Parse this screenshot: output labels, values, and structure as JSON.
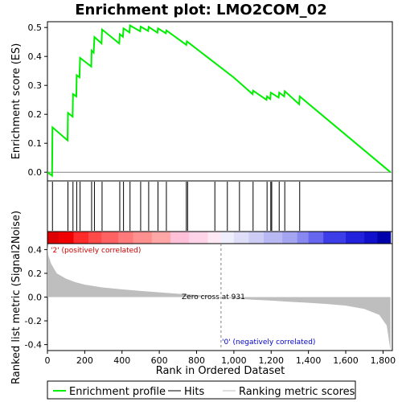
{
  "chart_data": {
    "type": "line",
    "title": "Enrichment plot: LMO2COM_02",
    "xlabel": "Rank in Ordered Dataset",
    "ylabel_top": "Enrichment score (ES)",
    "ylabel_bottom": "Ranked list metric (Signal2Noise)",
    "xlim": [
      0,
      1850
    ],
    "es_ylim": [
      -0.03,
      0.52
    ],
    "metric_ylim": [
      -0.45,
      0.45
    ],
    "x_ticks": [
      0,
      200,
      400,
      600,
      800,
      1000,
      1200,
      1400,
      1600,
      1800
    ],
    "x_tick_labels": [
      "0",
      "200",
      "400",
      "600",
      "800",
      "1,000",
      "1,200",
      "1,400",
      "1,600",
      "1,800"
    ],
    "es_ticks": [
      0.0,
      0.1,
      0.2,
      0.3,
      0.4,
      0.5
    ],
    "es_tick_labels": [
      "0.0",
      "0.1",
      "0.2",
      "0.3",
      "0.4",
      "0.5"
    ],
    "metric_ticks": [
      -0.4,
      -0.2,
      0.0,
      0.2,
      0.4
    ],
    "metric_tick_labels": [
      "-0.4",
      "-0.2",
      "0.0",
      "0.2",
      "0.4"
    ],
    "es_curve": [
      [
        0,
        0.0
      ],
      [
        25,
        -0.012
      ],
      [
        27,
        0.155
      ],
      [
        108,
        0.11
      ],
      [
        110,
        0.205
      ],
      [
        135,
        0.192
      ],
      [
        137,
        0.27
      ],
      [
        155,
        0.262
      ],
      [
        157,
        0.335
      ],
      [
        172,
        0.328
      ],
      [
        175,
        0.395
      ],
      [
        235,
        0.365
      ],
      [
        237,
        0.42
      ],
      [
        248,
        0.413
      ],
      [
        252,
        0.467
      ],
      [
        290,
        0.445
      ],
      [
        293,
        0.493
      ],
      [
        385,
        0.445
      ],
      [
        388,
        0.477
      ],
      [
        405,
        0.468
      ],
      [
        408,
        0.497
      ],
      [
        440,
        0.483
      ],
      [
        443,
        0.507
      ],
      [
        497,
        0.487
      ],
      [
        500,
        0.503
      ],
      [
        540,
        0.488
      ],
      [
        543,
        0.502
      ],
      [
        590,
        0.482
      ],
      [
        593,
        0.497
      ],
      [
        635,
        0.48
      ],
      [
        638,
        0.49
      ],
      [
        745,
        0.44
      ],
      [
        748,
        0.452
      ],
      [
        1000,
        0.327
      ],
      [
        1030,
        0.31
      ],
      [
        1100,
        0.27
      ],
      [
        1103,
        0.282
      ],
      [
        1175,
        0.25
      ],
      [
        1178,
        0.262
      ],
      [
        1195,
        0.253
      ],
      [
        1198,
        0.275
      ],
      [
        1240,
        0.258
      ],
      [
        1243,
        0.275
      ],
      [
        1270,
        0.262
      ],
      [
        1273,
        0.28
      ],
      [
        1350,
        0.235
      ],
      [
        1353,
        0.262
      ],
      [
        1840,
        0.0
      ]
    ],
    "hits": [
      27,
      110,
      137,
      157,
      175,
      237,
      252,
      293,
      388,
      408,
      443,
      500,
      543,
      593,
      638,
      745,
      752,
      898,
      965,
      1030,
      1103,
      1178,
      1198,
      1203,
      1243,
      1273,
      1353
    ],
    "metric_curve": [
      [
        0,
        0.44
      ],
      [
        5,
        0.35
      ],
      [
        20,
        0.28
      ],
      [
        50,
        0.2
      ],
      [
        100,
        0.155
      ],
      [
        150,
        0.125
      ],
      [
        200,
        0.105
      ],
      [
        300,
        0.08
      ],
      [
        400,
        0.065
      ],
      [
        500,
        0.052
      ],
      [
        600,
        0.04
      ],
      [
        700,
        0.028
      ],
      [
        800,
        0.018
      ],
      [
        931,
        0.0
      ],
      [
        1000,
        -0.012
      ],
      [
        1100,
        -0.022
      ],
      [
        1200,
        -0.03
      ],
      [
        1300,
        -0.04
      ],
      [
        1400,
        -0.048
      ],
      [
        1500,
        -0.058
      ],
      [
        1600,
        -0.072
      ],
      [
        1700,
        -0.1
      ],
      [
        1780,
        -0.15
      ],
      [
        1820,
        -0.24
      ],
      [
        1840,
        -0.45
      ]
    ],
    "zero_cross": 931,
    "zero_cross_label": "Zero cross at 931",
    "pos_label": "'2' (positively correlated)",
    "neg_label": "'0' (negatively correlated)",
    "legend": [
      "Enrichment profile",
      "Hits",
      "Ranking metric scores"
    ],
    "colors": {
      "es_line": "#00ee00",
      "hits": "#000000",
      "metric_fill": "#bebebe",
      "pos_text": "#cc0000",
      "neg_text": "#0000cc",
      "zero_line": "#808080"
    },
    "heatmap_segments": [
      {
        "to": 60,
        "color": "#dd0000"
      },
      {
        "to": 140,
        "color": "#f00000"
      },
      {
        "to": 220,
        "color": "#ff2a2a"
      },
      {
        "to": 290,
        "color": "#ff4a4a"
      },
      {
        "to": 380,
        "color": "#ff6262"
      },
      {
        "to": 460,
        "color": "#ff7a7a"
      },
      {
        "to": 560,
        "color": "#ff9090"
      },
      {
        "to": 660,
        "color": "#ffa6a6"
      },
      {
        "to": 760,
        "color": "#ffc0d8"
      },
      {
        "to": 860,
        "color": "#ffd4e8"
      },
      {
        "to": 931,
        "color": "#fde8f4"
      },
      {
        "to": 1000,
        "color": "#eeeefc"
      },
      {
        "to": 1080,
        "color": "#dedef8"
      },
      {
        "to": 1160,
        "color": "#ccccf4"
      },
      {
        "to": 1260,
        "color": "#b8b8f2"
      },
      {
        "to": 1340,
        "color": "#a4a4f0"
      },
      {
        "to": 1400,
        "color": "#8888f0"
      },
      {
        "to": 1480,
        "color": "#6666ee"
      },
      {
        "to": 1600,
        "color": "#3d3de8"
      },
      {
        "to": 1700,
        "color": "#2222dd"
      },
      {
        "to": 1770,
        "color": "#1010cc"
      },
      {
        "to": 1840,
        "color": "#0000aa"
      }
    ]
  }
}
